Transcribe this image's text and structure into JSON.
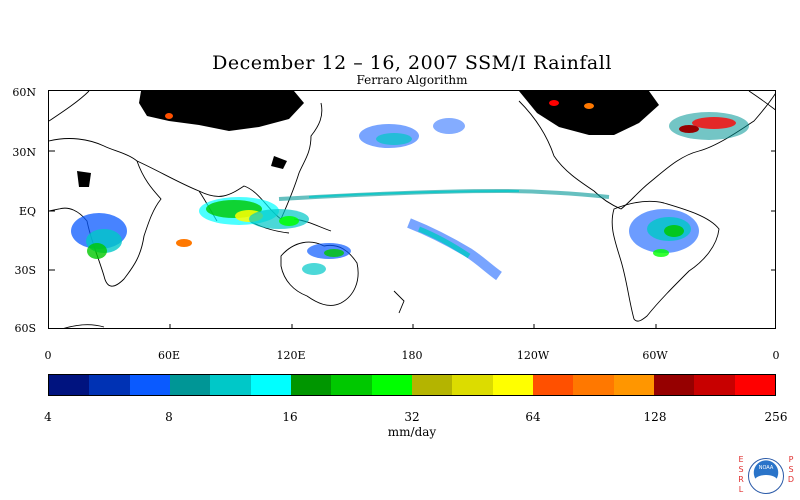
{
  "title": "December 12 – 16, 2007 SSM/I Rainfall",
  "subtitle": "Ferraro Algorithm",
  "latitude_labels": [
    "60N",
    "30N",
    "EQ",
    "30S",
    "60S"
  ],
  "longitude_labels": [
    "0",
    "60E",
    "120E",
    "180",
    "120W",
    "60W",
    "0"
  ],
  "colorbar": {
    "colors": [
      "#00137f",
      "#0032b4",
      "#0a5aff",
      "#009696",
      "#00c8c8",
      "#00ffff",
      "#009600",
      "#00c800",
      "#00ff00",
      "#b4b400",
      "#dcdc00",
      "#ffff00",
      "#ff5000",
      "#ff7800",
      "#ff9600",
      "#960000",
      "#c80000",
      "#ff0000"
    ],
    "tick_labels": [
      "4",
      "8",
      "16",
      "32",
      "64",
      "128",
      "256"
    ],
    "units": "mm/day"
  },
  "logo": {
    "left_letters": "ESRL",
    "right_letters": "PSD",
    "badge_text": "NOAA"
  },
  "colors": {
    "land_outline": "#000000",
    "no_data": "#000000",
    "background": "#ffffff"
  }
}
